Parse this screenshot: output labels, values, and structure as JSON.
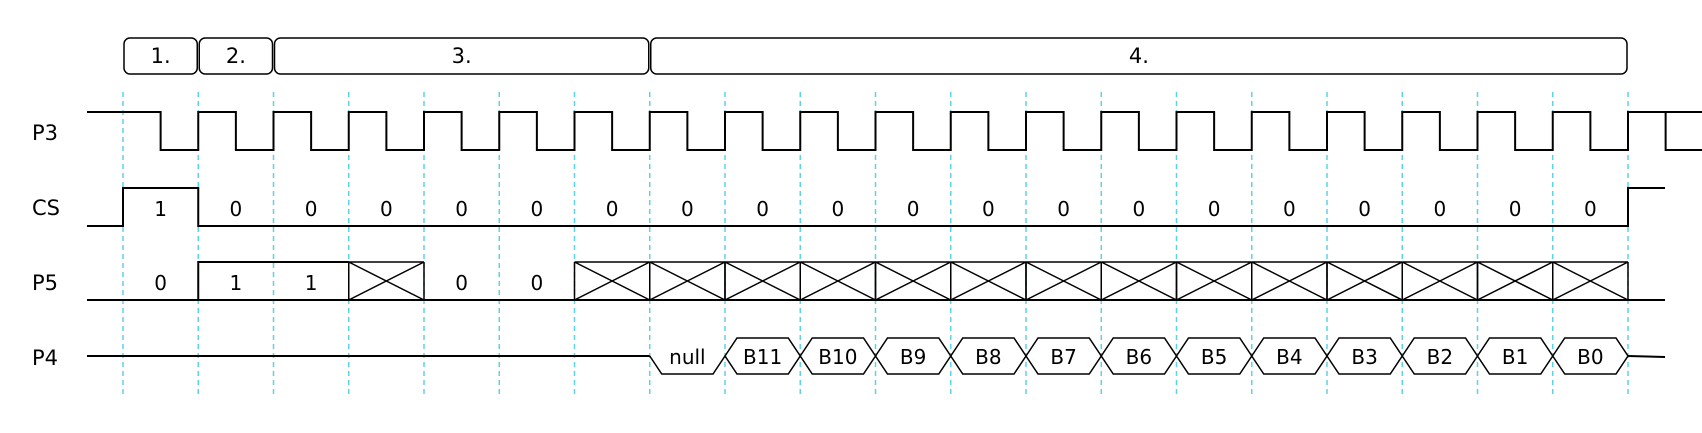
{
  "phases": [
    "1.",
    "2.",
    "3.",
    "4."
  ],
  "signals": {
    "p3": {
      "name": "P3",
      "levels": [
        1,
        0,
        1,
        0,
        1,
        0,
        1,
        0,
        1,
        0,
        1,
        0,
        1,
        0,
        1,
        0,
        1,
        0,
        1,
        0,
        1,
        0,
        1,
        0,
        1,
        0,
        1,
        0,
        1,
        0,
        1,
        0,
        1,
        0,
        1,
        0,
        1,
        0,
        1,
        0,
        1,
        0,
        1
      ]
    },
    "cs": {
      "name": "CS",
      "values": [
        "1",
        "0",
        "0",
        "0",
        "0",
        "0",
        "0",
        "0",
        "0",
        "0",
        "0",
        "0",
        "0",
        "0",
        "0",
        "0",
        "0",
        "0",
        "0",
        "0"
      ]
    },
    "p5": {
      "name": "P5",
      "values": [
        "0",
        "1",
        "1",
        "X",
        "0",
        "0",
        "X",
        "X",
        "X",
        "X",
        "X",
        "X",
        "X",
        "X",
        "X",
        "X",
        "X",
        "X",
        "X",
        "X"
      ]
    },
    "p4": {
      "name": "P4",
      "values": [
        "null",
        "B11",
        "B10",
        "B9",
        "B8",
        "B7",
        "B6",
        "B5",
        "B4",
        "B3",
        "B2",
        "B1",
        "B0"
      ]
    }
  },
  "colors": {
    "guide": "#5fd3e6",
    "line": "#000000"
  }
}
